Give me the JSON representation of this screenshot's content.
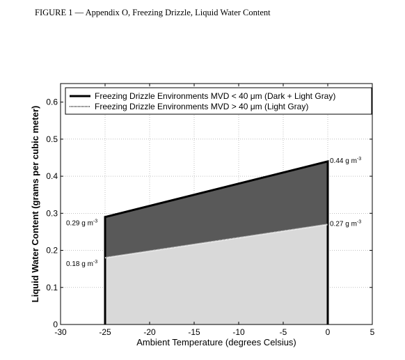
{
  "caption": "FIGURE 1 — Appendix O, Freezing Drizzle, Liquid Water Content",
  "chart_data": {
    "type": "area",
    "xlabel": "Ambient Temperature (degrees Celsius)",
    "ylabel": "Liquid Water Content (grams per cubic meter)",
    "xlim": [
      -30,
      5
    ],
    "ylim": [
      0,
      0.65
    ],
    "xticks": [
      -30,
      -25,
      -20,
      -15,
      -10,
      -5,
      0,
      5
    ],
    "yticks": [
      0,
      0.1,
      0.2,
      0.3,
      0.4,
      0.5,
      0.6
    ],
    "grid": true,
    "legend_position": "top-left",
    "series": [
      {
        "name": "Freezing Drizzle Environments MVD < 40 μm (Dark + Light Gray)",
        "x": [
          -25,
          0
        ],
        "y": [
          0.29,
          0.44
        ],
        "fill": "#595959",
        "line_style": "solid"
      },
      {
        "name": "Freezing Drizzle Environments MVD > 40 μm (Light Gray)",
        "x": [
          -25,
          0
        ],
        "y": [
          0.18,
          0.27
        ],
        "fill": "#d9d9d9",
        "line_style": "dotted"
      }
    ],
    "annotations": [
      {
        "text": "0.29 g m",
        "sup": "-3",
        "x": -25,
        "y": 0.29,
        "side": "left"
      },
      {
        "text": "0.18 g m",
        "sup": "-3",
        "x": -25,
        "y": 0.18,
        "side": "left"
      },
      {
        "text": "0.44 g m",
        "sup": "-3",
        "x": 0,
        "y": 0.44,
        "side": "right"
      },
      {
        "text": "0.27 g m",
        "sup": "-3",
        "x": 0,
        "y": 0.27,
        "side": "right"
      }
    ]
  }
}
